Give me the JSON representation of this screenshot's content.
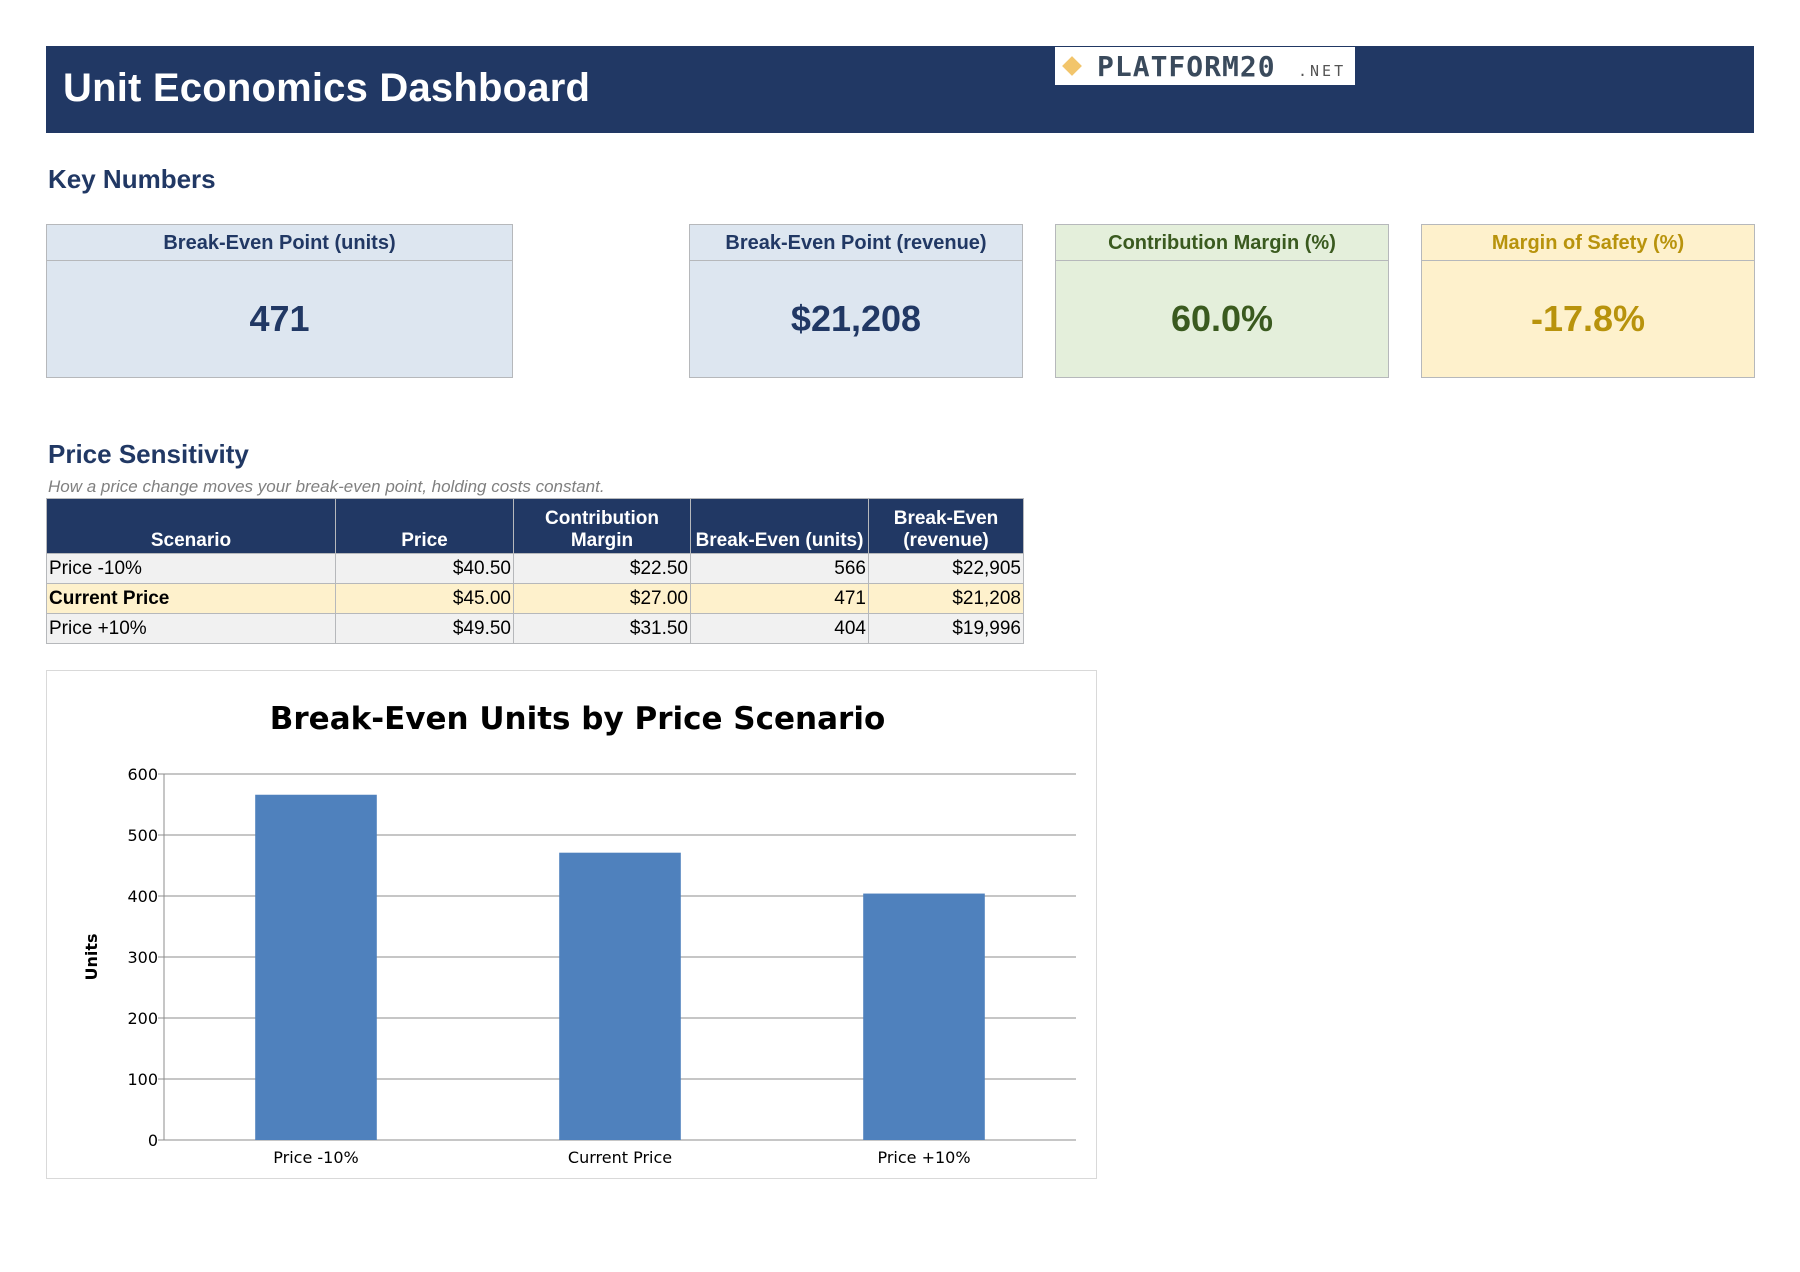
{
  "header": {
    "title": "Unit Economics Dashboard",
    "logo_text": "PLATFORM20",
    "logo_suffix": ".NET"
  },
  "key_numbers": {
    "section_title": "Key Numbers",
    "cards": [
      {
        "label": "Break-Even Point (units)",
        "value": "471",
        "color": "#213864"
      },
      {
        "label": "Break-Even Point (revenue)",
        "value": "$21,208",
        "color": "#213864"
      },
      {
        "label": "Contribution Margin (%)",
        "value": "60.0%",
        "color": "#3a5a1f"
      },
      {
        "label": "Margin of Safety (%)",
        "value": "-17.8%",
        "color": "#b8930c"
      }
    ]
  },
  "price_sensitivity": {
    "section_title": "Price Sensitivity",
    "subtitle": "How a price change moves your break-even point, holding costs constant.",
    "columns": [
      "Scenario",
      "Price",
      "Contribution Margin",
      "Break-Even (units)",
      "Break-Even (revenue)"
    ],
    "rows": [
      {
        "scenario": "Price -10%",
        "price": "$40.50",
        "contribution_margin": "$22.50",
        "be_units": "566",
        "be_revenue": "$22,905"
      },
      {
        "scenario": "Current Price",
        "price": "$45.00",
        "contribution_margin": "$27.00",
        "be_units": "471",
        "be_revenue": "$21,208"
      },
      {
        "scenario": "Price +10%",
        "price": "$49.50",
        "contribution_margin": "$31.50",
        "be_units": "404",
        "be_revenue": "$19,996"
      }
    ]
  },
  "chart_data": {
    "type": "bar",
    "title": "Break-Even Units by Price Scenario",
    "xlabel": "",
    "ylabel": "Units",
    "categories": [
      "Price -10%",
      "Current Price",
      "Price +10%"
    ],
    "values": [
      566,
      471,
      404
    ],
    "ylim": [
      0,
      600
    ],
    "yticks": [
      0,
      100,
      200,
      300,
      400,
      500,
      600
    ],
    "grid": true,
    "legend": "none",
    "bar_color": "#4f81bd"
  }
}
